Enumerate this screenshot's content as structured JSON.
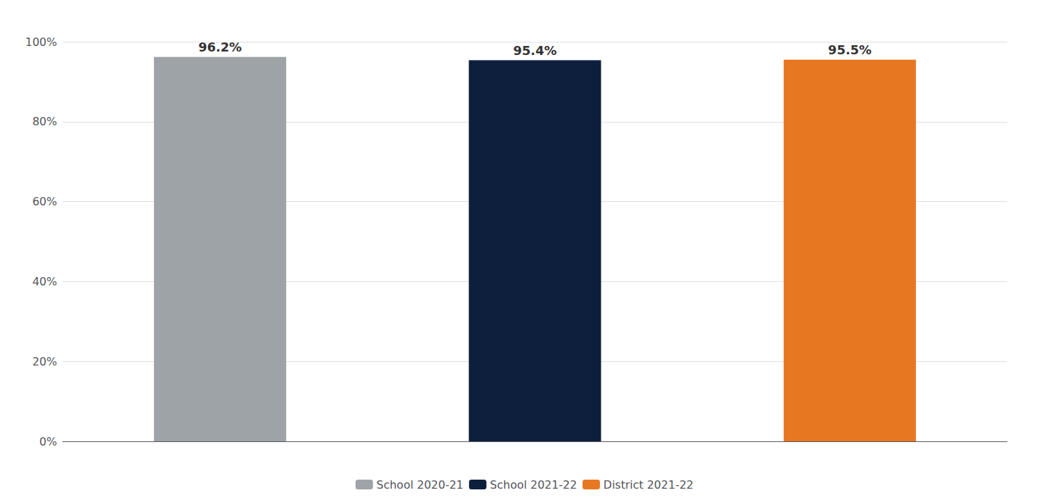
{
  "chart_data": {
    "type": "bar",
    "categories": [
      "School 2020-21",
      "School 2021-22",
      "District 2021-22"
    ],
    "values": [
      0.962,
      0.954,
      0.955
    ],
    "value_labels": [
      "96.2%",
      "95.4%",
      "95.5%"
    ],
    "colors": [
      "#9EA3A8",
      "#0D1F3C",
      "#E87722"
    ],
    "ylim": [
      0,
      1.0
    ],
    "yticks": [
      {
        "value": 0,
        "label": "0%"
      },
      {
        "value": 0.2,
        "label": "20%"
      },
      {
        "value": 0.4,
        "label": "40%"
      },
      {
        "value": 0.6,
        "label": "60%"
      },
      {
        "value": 0.8,
        "label": "80%"
      },
      {
        "value": 1.0,
        "label": "100%"
      }
    ],
    "grid": true,
    "data_labels": true,
    "tick_labels": "y",
    "legend": "bottom"
  }
}
